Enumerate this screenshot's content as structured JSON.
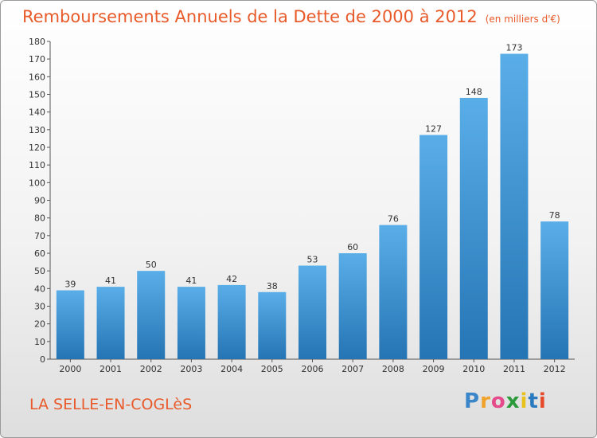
{
  "header": {
    "title": "Remboursements Annuels de la Dette de 2000 à 2012",
    "unit": "(en milliers d'€)"
  },
  "footer": {
    "commune": "LA SELLE-EN-COGLèS"
  },
  "logo": {
    "text": "Proxiti",
    "letters": [
      {
        "ch": "P",
        "color": "#3a86c8"
      },
      {
        "ch": "r",
        "color": "#f0a22a"
      },
      {
        "ch": "o",
        "color": "#e54a8a"
      },
      {
        "ch": "x",
        "color": "#2a9a3a"
      },
      {
        "ch": "i",
        "color": "#e8c21a"
      },
      {
        "ch": "t",
        "color": "#2a7ac0"
      },
      {
        "ch": "i",
        "color": "#e54a2a"
      }
    ]
  },
  "chart_data": {
    "type": "bar",
    "title": "Remboursements Annuels de la Dette de 2000 à 2012",
    "subtitle": "(en milliers d'€)",
    "categories": [
      "2000",
      "2001",
      "2002",
      "2003",
      "2004",
      "2005",
      "2006",
      "2007",
      "2008",
      "2009",
      "2010",
      "2011",
      "2012"
    ],
    "values": [
      39,
      41,
      50,
      41,
      42,
      38,
      53,
      60,
      76,
      127,
      148,
      173,
      78
    ],
    "xlabel": "",
    "ylabel": "",
    "ylim": [
      0,
      180
    ],
    "yticks": [
      0,
      10,
      20,
      30,
      40,
      50,
      60,
      70,
      80,
      90,
      100,
      110,
      120,
      130,
      140,
      150,
      160,
      170,
      180
    ],
    "grid": false,
    "legend": "none",
    "bar_color": "#2e88cc"
  }
}
